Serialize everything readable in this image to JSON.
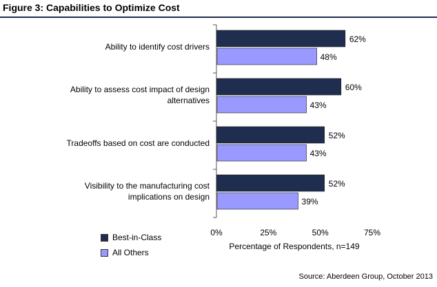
{
  "figure": {
    "title": "Figure 3:  Capabilities to Optimize Cost",
    "source": "Source: Aberdeen Group, October 2013"
  },
  "chart_data": {
    "type": "bar",
    "orientation": "horizontal",
    "categories": [
      [
        "Ability to identify cost drivers"
      ],
      [
        "Ability to assess cost impact of design",
        "alternatives"
      ],
      [
        "Tradeoffs based on cost are conducted"
      ],
      [
        "Visibility to the manufacturing cost",
        "implications on design"
      ]
    ],
    "series": [
      {
        "name": "Best-in-Class",
        "values": [
          62,
          60,
          52,
          52
        ],
        "color": "#1f2d4e"
      },
      {
        "name": "All Others",
        "values": [
          48,
          43,
          43,
          39
        ],
        "color": "#9999ff"
      }
    ],
    "value_labels": [
      [
        "62%",
        "60%",
        "52%",
        "52%"
      ],
      [
        "48%",
        "43%",
        "43%",
        "39%"
      ]
    ],
    "xaxis": {
      "ticks": [
        0,
        25,
        50,
        75
      ],
      "tick_labels": [
        "0%",
        "25%",
        "50%",
        "75%"
      ],
      "label": "Percentage of Respondents, n=149",
      "range": [
        0,
        75
      ]
    },
    "grid": false,
    "legend_position": "bottom-left"
  }
}
